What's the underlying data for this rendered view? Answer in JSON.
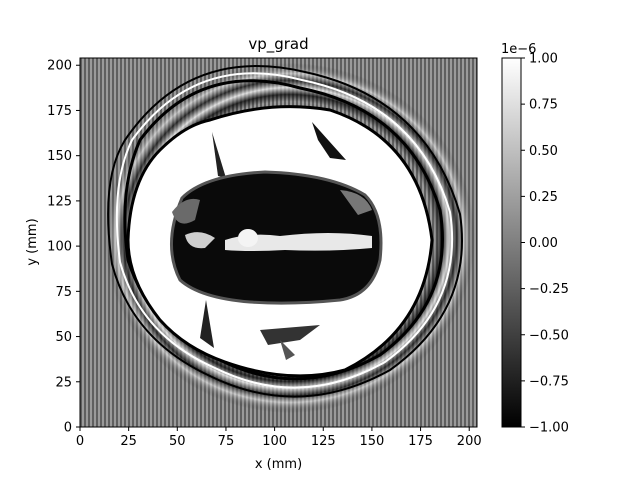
{
  "chart_data": {
    "type": "heatmap",
    "title": "vp_grad",
    "xlabel": "x (mm)",
    "ylabel": "y (mm)",
    "xlim": [
      0,
      204
    ],
    "ylim": [
      0,
      204
    ],
    "x_ticks": [
      "0",
      "25",
      "50",
      "75",
      "100",
      "125",
      "150",
      "175",
      "200"
    ],
    "y_ticks": [
      "0",
      "25",
      "50",
      "75",
      "100",
      "125",
      "150",
      "175",
      "200"
    ],
    "colormap": "gray",
    "colorbar": {
      "range": [
        -1.0,
        1.0
      ],
      "scale_label": "1e−6",
      "ticks": [
        "−1.00",
        "−0.75",
        "−0.50",
        "−0.25",
        "0.00",
        "0.25",
        "0.50",
        "0.75",
        "1.00"
      ]
    }
  }
}
